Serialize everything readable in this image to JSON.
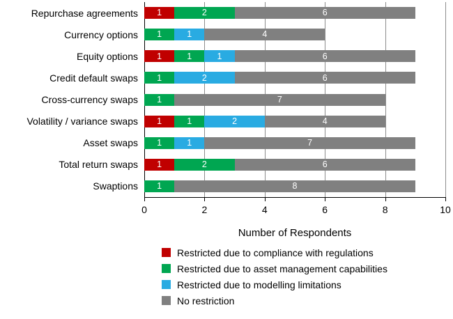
{
  "chart_data": {
    "type": "bar",
    "orientation": "horizontal",
    "stacked": true,
    "title": "",
    "xlabel": "Number of Respondents",
    "ylabel": "",
    "xlim": [
      0,
      10
    ],
    "xticks": [
      0,
      2,
      4,
      6,
      8,
      10
    ],
    "grid": true,
    "legend_position": "bottom",
    "axis_color": "#000000",
    "gridline_color": "#8c8c8c",
    "bar_label_color": "#ffffff",
    "categories": [
      "Repurchase agreements",
      "Currency options",
      "Equity options",
      "Credit default swaps",
      "Cross-currency swaps",
      "Volatility / variance swaps",
      "Asset swaps",
      "Total return swaps",
      "Swaptions"
    ],
    "series": [
      {
        "name": "Restricted due to compliance with regulations",
        "color": "#c00000",
        "values": [
          1,
          0,
          1,
          0,
          0,
          1,
          0,
          1,
          0
        ]
      },
      {
        "name": "Restricted due to asset management capabilities",
        "color": "#00a651",
        "values": [
          2,
          1,
          1,
          1,
          1,
          1,
          1,
          2,
          1
        ]
      },
      {
        "name": "Restricted due to modelling limitations",
        "color": "#29abe2",
        "values": [
          0,
          1,
          1,
          2,
          0,
          2,
          1,
          0,
          0
        ]
      },
      {
        "name": "No restriction",
        "color": "#808080",
        "values": [
          6,
          4,
          6,
          6,
          7,
          4,
          7,
          6,
          8
        ]
      }
    ]
  }
}
